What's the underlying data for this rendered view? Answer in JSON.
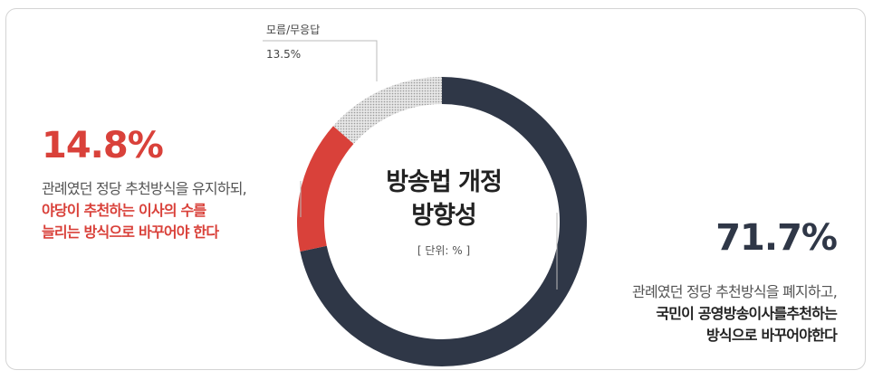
{
  "chart_data": {
    "type": "pie",
    "variant": "donut",
    "title": "방송법 개정 방향성",
    "title_lines": [
      "방송법 개정",
      "방향성"
    ],
    "unit_label": "[ 단위: % ]",
    "slices": [
      {
        "label": "관례였던 정당 추천방식을 폐지하고, 국민이 공영방송이사를추천하는 방식으로 바꾸어야한다",
        "value": 71.7,
        "value_label": "71.7%",
        "desc_lines": [
          "관례였던 정당 추천방식을 폐지하고,",
          "국민이 공영방송이사를추천하는",
          "방식으로 바꾸어야한다"
        ],
        "color": "#2f3747"
      },
      {
        "label": "관례였던 정당 추천방식을 유지하되, 야당이 추천하는 이사의 수를 늘리는 방식으로 바꾸어야 한다",
        "value": 14.8,
        "value_label": "14.8%",
        "desc_lines": [
          "관례였던 정당 추천방식을 유지하되,",
          "야당이 추천하는 이사의 수를",
          "늘리는 방식으로 바꾸어야 한다"
        ],
        "color": "#d9413a"
      },
      {
        "label": "모름/무응답",
        "value": 13.5,
        "value_label": "13.5%",
        "color": "#cfcfcf",
        "pattern": "dotted"
      }
    ]
  }
}
